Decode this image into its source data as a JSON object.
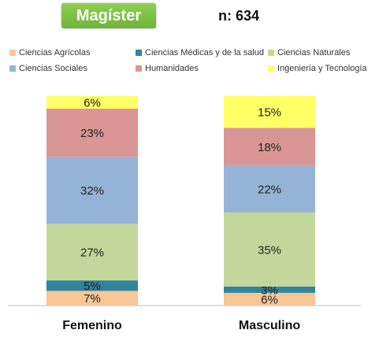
{
  "header": {
    "title": "Magíster",
    "n": "n: 634"
  },
  "chart_data": {
    "type": "bar",
    "stacked": true,
    "normalized": true,
    "categories": [
      "Femenino",
      "Masculino"
    ],
    "series": [
      {
        "name": "Ciencias Agrícolas",
        "color": "#f8c595",
        "values": [
          7,
          6
        ],
        "labels": [
          "7%",
          "6%"
        ]
      },
      {
        "name": "Ciencias Médicas y de la salud",
        "color": "#31849b",
        "values": [
          5,
          3
        ],
        "labels": [
          "5%",
          "3%"
        ]
      },
      {
        "name": "Ciencias Naturales",
        "color": "#c4d79b",
        "values": [
          27,
          35
        ],
        "labels": [
          "27%",
          "35%"
        ]
      },
      {
        "name": "Ciencias Sociales",
        "color": "#95b3d7",
        "values": [
          32,
          22
        ],
        "labels": [
          "32%",
          "22%"
        ]
      },
      {
        "name": "Humanidades",
        "color": "#da9694",
        "values": [
          23,
          18
        ],
        "labels": [
          "23%",
          "18%"
        ]
      },
      {
        "name": "Ingeniería y Tecnología",
        "color": "#ffff66",
        "values": [
          6,
          15
        ],
        "labels": [
          "6%",
          "15%"
        ]
      }
    ],
    "legend_position": "top",
    "ylim": [
      0,
      100
    ]
  }
}
